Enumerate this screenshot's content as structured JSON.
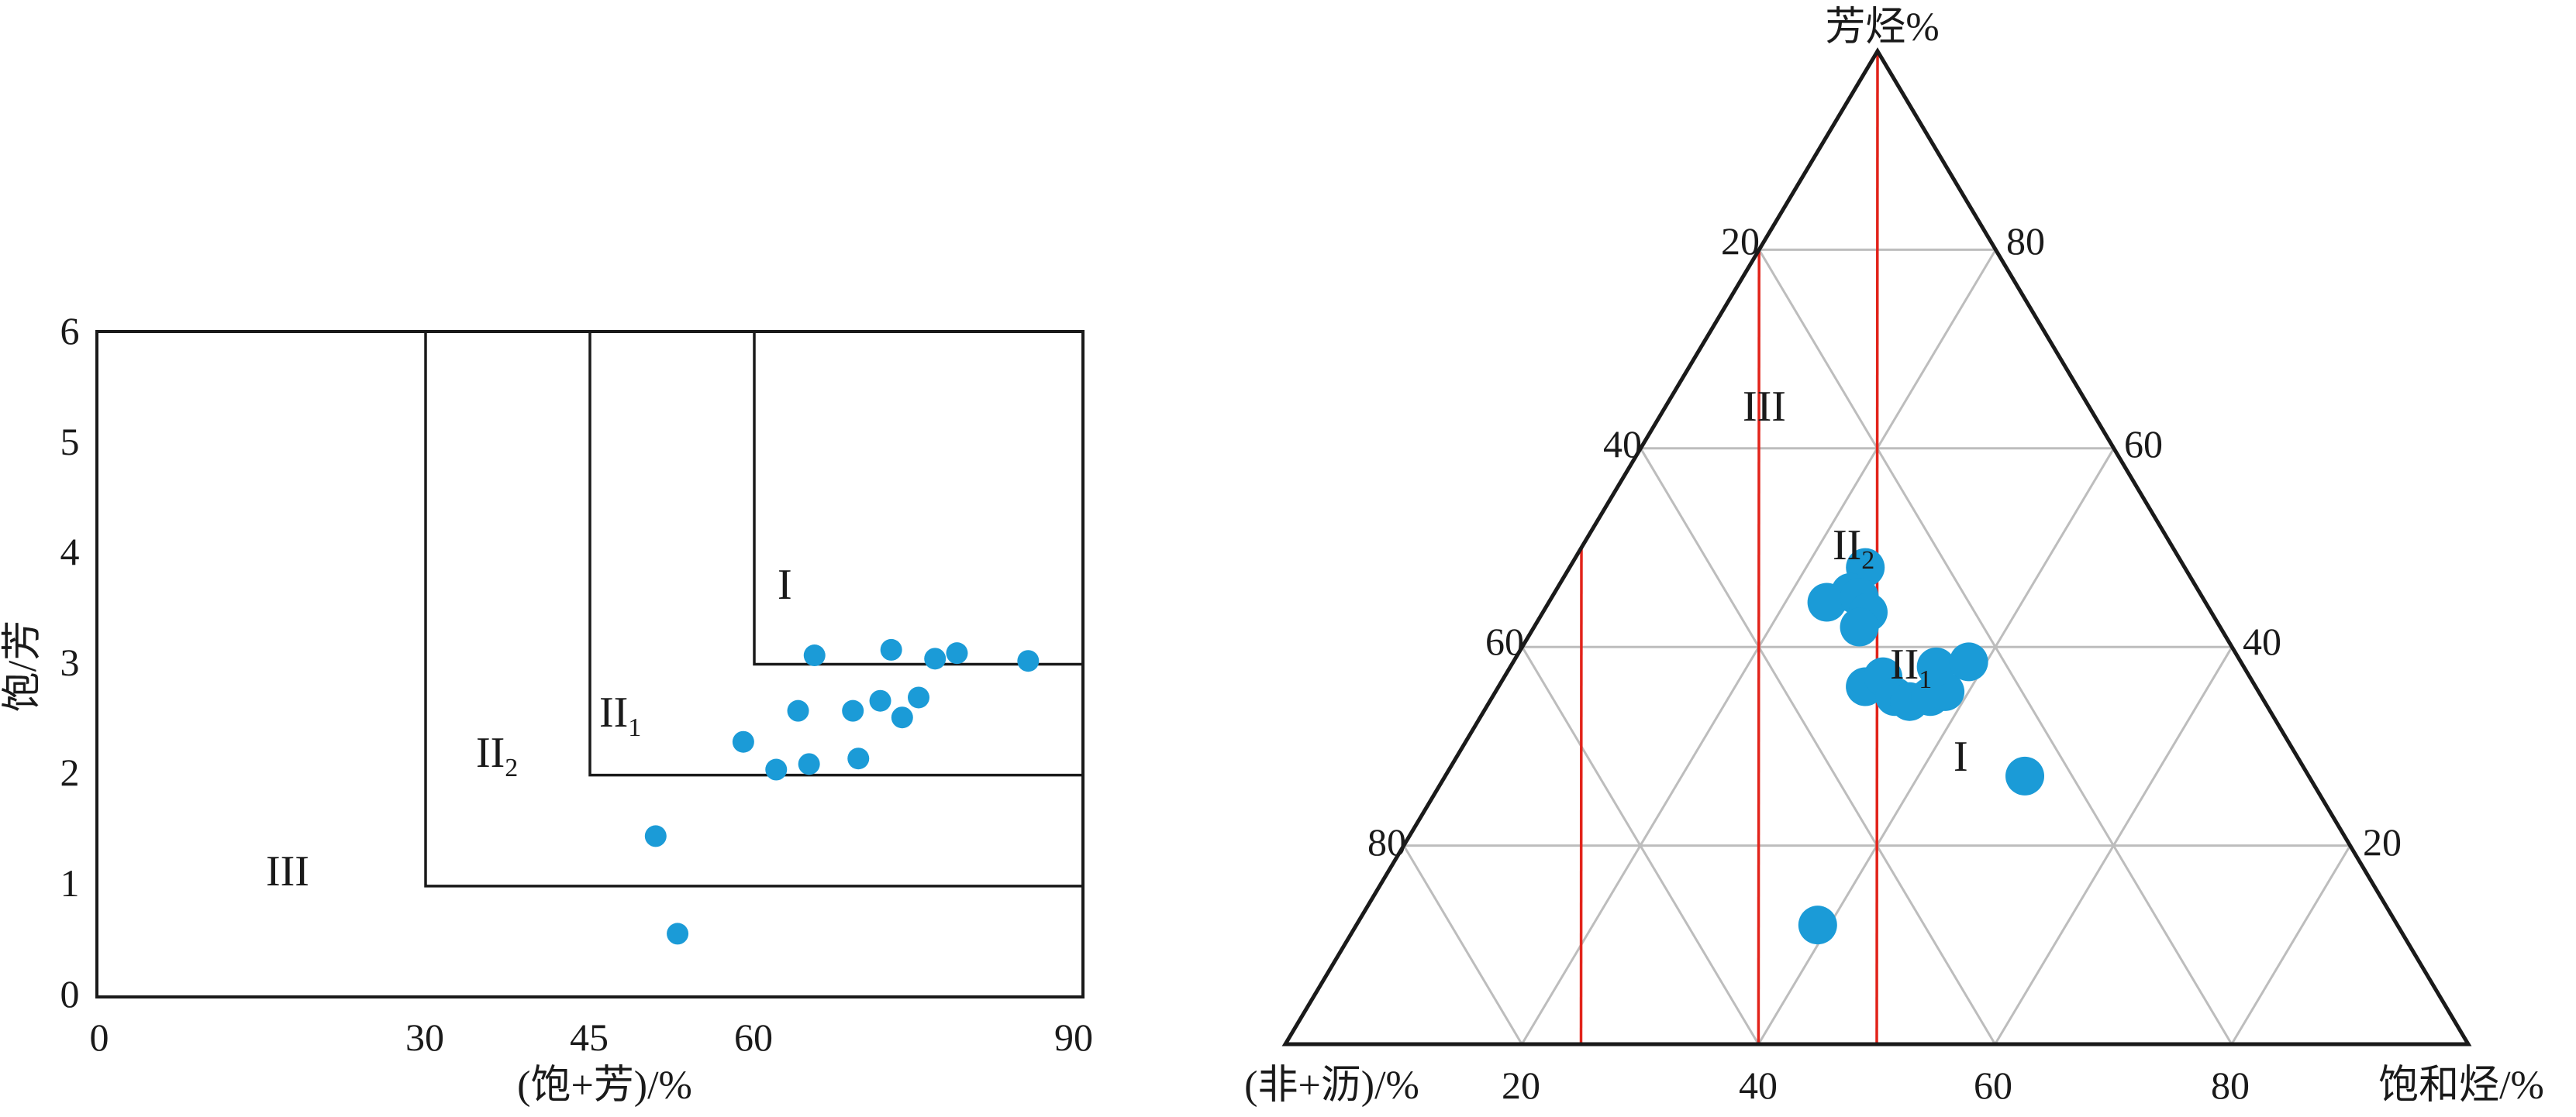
{
  "colors": {
    "point": "#1b9bd7",
    "frame": "#1a1a1a",
    "grid": "#bdbdbd",
    "boundary": "#e2231a"
  },
  "chart_data": [
    {
      "type": "scatter",
      "xlabel": "(饱+芳)/%",
      "ylabel": "饱/芳",
      "xlim": [
        0,
        90
      ],
      "ylim": [
        0,
        6
      ],
      "xticks": [
        "0",
        "30",
        "45",
        "60",
        "90"
      ],
      "yticks": [
        "0",
        "1",
        "2",
        "3",
        "4",
        "5",
        "6"
      ],
      "zones": [
        {
          "base": "I",
          "sub": ""
        },
        {
          "base": "II",
          "sub": "1"
        },
        {
          "base": "II",
          "sub": "2"
        },
        {
          "base": "III",
          "sub": ""
        }
      ],
      "zone_boundaries": [
        {
          "x_min": 30,
          "y_min": 1
        },
        {
          "x_min": 45,
          "y_min": 2
        },
        {
          "x_min": 60,
          "y_min": 3
        }
      ],
      "points": [
        {
          "x": 51,
          "y": 1.45
        },
        {
          "x": 53,
          "y": 0.57
        },
        {
          "x": 59,
          "y": 2.3
        },
        {
          "x": 62,
          "y": 2.05
        },
        {
          "x": 64,
          "y": 2.58
        },
        {
          "x": 65,
          "y": 2.1
        },
        {
          "x": 65.5,
          "y": 3.08
        },
        {
          "x": 69,
          "y": 2.58
        },
        {
          "x": 69.5,
          "y": 2.15
        },
        {
          "x": 71.5,
          "y": 2.67
        },
        {
          "x": 72.5,
          "y": 3.13
        },
        {
          "x": 73.5,
          "y": 2.52
        },
        {
          "x": 75,
          "y": 2.7
        },
        {
          "x": 76.5,
          "y": 3.05
        },
        {
          "x": 78.5,
          "y": 3.1
        },
        {
          "x": 85,
          "y": 3.03
        }
      ]
    },
    {
      "type": "scatter",
      "subtype": "ternary",
      "axes": {
        "top": "芳烃%",
        "left": "(非+沥)/%",
        "right": "饱和烃/%"
      },
      "ticks": [
        "20",
        "40",
        "60",
        "80"
      ],
      "zones": [
        {
          "base": "III",
          "sub": ""
        },
        {
          "base": "II",
          "sub": "2"
        },
        {
          "base": "II",
          "sub": "1"
        },
        {
          "base": "I",
          "sub": ""
        }
      ],
      "boundary_lines": [
        {
          "saturates_minus_resins_asphaltenes": -50
        },
        {
          "saturates_minus_resins_asphaltenes": -20
        },
        {
          "saturates_minus_resins_asphaltenes": 0
        }
      ],
      "points": [
        {
          "aromatics": 48,
          "saturates": 25
        },
        {
          "aromatics": 45.5,
          "saturates": 25
        },
        {
          "aromatics": 44.5,
          "saturates": 23.5
        },
        {
          "aromatics": 45,
          "saturates": 26
        },
        {
          "aromatics": 43.5,
          "saturates": 27.5
        },
        {
          "aromatics": 42,
          "saturates": 27.5
        },
        {
          "aromatics": 36,
          "saturates": 31
        },
        {
          "aromatics": 37,
          "saturates": 32
        },
        {
          "aromatics": 35,
          "saturates": 34
        },
        {
          "aromatics": 34.5,
          "saturates": 35.5
        },
        {
          "aromatics": 35,
          "saturates": 37
        },
        {
          "aromatics": 35.5,
          "saturates": 38
        },
        {
          "aromatics": 38,
          "saturates": 36
        },
        {
          "aromatics": 38.5,
          "saturates": 38.5
        },
        {
          "aromatics": 12,
          "saturates": 39
        },
        {
          "aromatics": 27,
          "saturates": 49
        }
      ]
    }
  ]
}
